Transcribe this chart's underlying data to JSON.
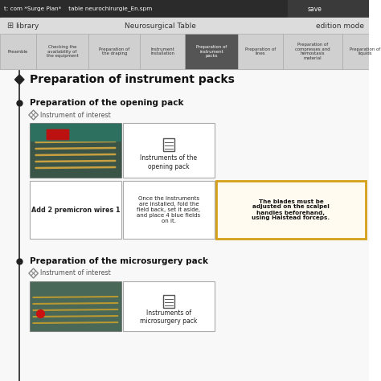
{
  "bg_color": "#f5f5f5",
  "title_bar_text": "t: com *Surge Plan*    table neurochirurgie_En.spm",
  "save_text": "save",
  "library_text": "library",
  "neurosurgical_text": "Neurosurgical Table",
  "edition_text": "edition mode",
  "tabs": [
    "Preamble",
    "Checking the\navailability of\nthe equipment",
    "Preparation of\nthe draping",
    "Instrument\nInstallation",
    "Preparation of\ninstrument\npacks",
    "Preparation of\nlines",
    "Preparation of\ncompresses and\nhemostasis\nmaterial",
    "Preparation of\nliquids"
  ],
  "active_tab": 4,
  "main_title": "Preparation of instrument packs",
  "section1_title": "Preparation of the opening pack",
  "section2_title": "Preparation of the microsurgery pack",
  "instrument_label": "Instrument of interest",
  "cell1_text": "Instruments of the\nopening pack",
  "cell2_text": "Add 2 premicron wires 1",
  "cell3_text": "Once the instruments\nare installed, fold the\nfield back, set it aside,\nand place 4 blue fields\non it.",
  "cell4_text": "The blades must be\nadjusted on the scalpel\nhandles beforehand,\nusing Halstead forceps.",
  "cell4_border_color": "#d4a017",
  "cell4_bg_color": "#fffbf0",
  "cell5_text": "Instruments of\nmicrosurgery pack",
  "timeline_color": "#222222",
  "diamond_color": "#222222"
}
